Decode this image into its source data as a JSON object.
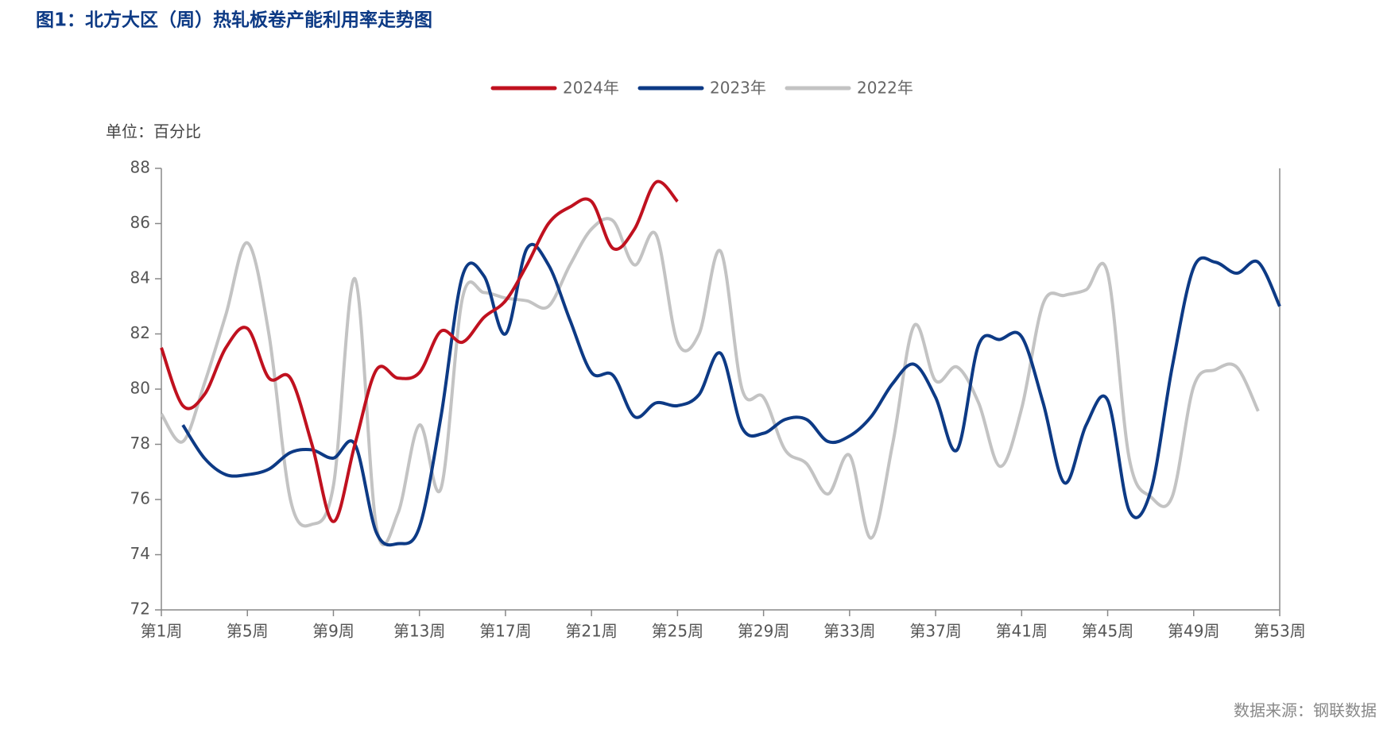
{
  "chart_data": {
    "type": "line",
    "title": "图1：北方大区（周）热轧板卷产能利用率走势图",
    "unit": "单位：百分比",
    "source": "数据来源：钢联数据",
    "categories": [
      "第1周",
      null,
      null,
      null,
      "第5周",
      null,
      null,
      null,
      "第9周",
      null,
      null,
      null,
      "第13周",
      null,
      null,
      null,
      "第17周",
      null,
      null,
      null,
      "第21周",
      null,
      null,
      null,
      "第25周",
      null,
      null,
      null,
      "第29周",
      null,
      null,
      null,
      "第33周",
      null,
      null,
      null,
      "第37周",
      null,
      null,
      null,
      "第41周",
      null,
      null,
      null,
      "第45周",
      null,
      null,
      null,
      "第49周",
      null,
      null,
      null,
      "第53周"
    ],
    "series": [
      {
        "name": "2024年",
        "color": "#c0111f",
        "values": [
          81.5,
          79.4,
          79.8,
          81.5,
          82.2,
          80.4,
          80.4,
          78.0,
          75.2,
          78.0,
          80.7,
          80.4,
          80.6,
          82.1,
          81.7,
          82.6,
          83.2,
          84.5,
          86.0,
          86.6,
          86.8,
          85.1,
          85.8,
          87.5,
          86.8,
          null,
          null,
          null,
          null,
          null,
          null,
          null,
          null,
          null,
          null,
          null,
          null,
          null,
          null,
          null,
          null,
          null,
          null,
          null,
          null,
          null,
          null,
          null,
          null,
          null,
          null,
          null,
          null
        ]
      },
      {
        "name": "2023年",
        "color": "#0d3a85",
        "values": [
          null,
          78.7,
          77.5,
          76.9,
          76.9,
          77.1,
          77.7,
          77.8,
          77.5,
          78.0,
          74.8,
          74.4,
          75.0,
          79.0,
          84.1,
          84.1,
          82.0,
          85.1,
          84.5,
          82.5,
          80.6,
          80.5,
          79.0,
          79.5,
          79.4,
          79.8,
          81.3,
          78.6,
          78.4,
          78.9,
          78.9,
          78.1,
          78.3,
          79.0,
          80.2,
          80.9,
          79.7,
          77.8,
          81.6,
          81.8,
          81.9,
          79.5,
          76.6,
          78.7,
          79.6,
          75.6,
          76.3,
          80.8,
          84.4,
          84.6,
          84.2,
          84.6,
          83.0
        ]
      },
      {
        "name": "2022年",
        "color": "#c3c3c3",
        "values": [
          79.1,
          78.1,
          80.2,
          82.7,
          85.3,
          82.0,
          76.0,
          75.1,
          76.5,
          84.0,
          75.0,
          75.5,
          78.7,
          76.4,
          83.3,
          83.5,
          83.3,
          83.2,
          83.0,
          84.5,
          85.8,
          86.1,
          84.5,
          85.6,
          81.7,
          82.0,
          85.0,
          80.0,
          79.7,
          77.8,
          77.3,
          76.2,
          77.6,
          74.6,
          78.0,
          82.3,
          80.3,
          80.8,
          79.5,
          77.2,
          79.3,
          83.1,
          83.4,
          83.6,
          84.2,
          77.5,
          76.1,
          76.1,
          80.1,
          80.7,
          80.8,
          79.2,
          null
        ]
      }
    ],
    "ylim": [
      72,
      88
    ],
    "yticks": [
      72,
      74,
      76,
      78,
      80,
      82,
      84,
      86,
      88
    ],
    "grid": false
  }
}
